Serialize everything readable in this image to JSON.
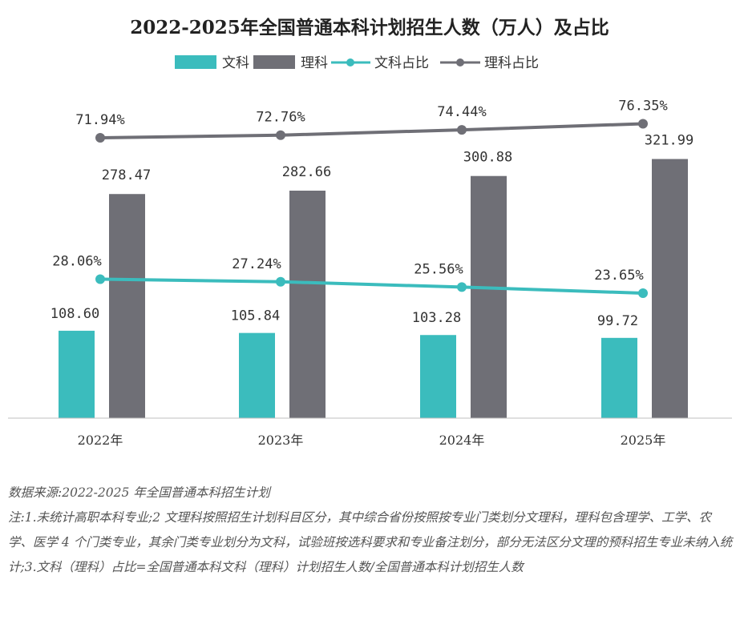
{
  "chart_data": {
    "type": "bar",
    "title": "2022-2025年全国普通本科计划招生人数（万人）及占比",
    "categories": [
      "2022年",
      "2023年",
      "2024年",
      "2025年"
    ],
    "series": [
      {
        "name": "文科",
        "kind": "bar",
        "color": "#3bbcbd",
        "values": [
          108.6,
          105.84,
          103.28,
          99.72
        ],
        "labels": [
          "108.60",
          "105.84",
          "103.28",
          "99.72"
        ]
      },
      {
        "name": "理科",
        "kind": "bar",
        "color": "#6f6f76",
        "values": [
          278.47,
          282.66,
          300.88,
          321.99
        ],
        "labels": [
          "278.47",
          "282.66",
          "300.88",
          "321.99"
        ]
      },
      {
        "name": "文科占比",
        "kind": "line",
        "color": "#3bbcbd",
        "values": [
          28.06,
          27.24,
          25.56,
          23.65
        ],
        "labels": [
          "28.06%",
          "27.24%",
          "25.56%",
          "23.65%"
        ]
      },
      {
        "name": "理科占比",
        "kind": "line",
        "color": "#6f6f76",
        "values": [
          71.94,
          72.76,
          74.44,
          76.35
        ],
        "labels": [
          "71.94%",
          "72.76%",
          "74.44%",
          "76.35%"
        ]
      }
    ],
    "ylim_bars": [
      0,
      345
    ],
    "ylim_share": [
      0,
      100
    ],
    "grid": false,
    "legend": "top-center"
  },
  "notes": {
    "source": "数据来源:2022-2025 年全国普通本科招生计划",
    "note": "注:1.未统计高职本科专业;2 文理科按照招生计划科目区分，其中综合省份按照按专业门类划分文理科，理科包含理学、工学、农学、医学 4 个门类专业，其余门类专业划分为文科，试验班按选科要求和专业备注划分，部分无法区分文理的预科招生专业未纳入统计;3.文科（理科）占比=全国普通本科文科（理科）计划招生人数/全国普通本科计划招生人数"
  }
}
